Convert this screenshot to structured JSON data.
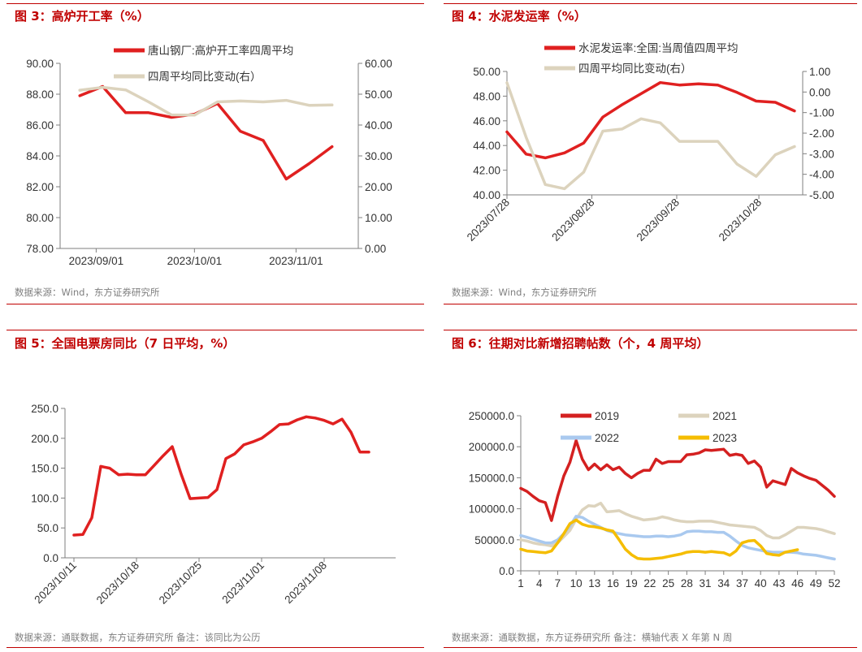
{
  "panels": [
    {
      "title": "图 3：高炉开工率（%）",
      "source": "数据来源：Wind，东方证券研究所",
      "chart_data": {
        "type": "line",
        "x": [
          "2023-08-27",
          "2023-09-03",
          "2023-09-10",
          "2023-09-17",
          "2023-09-24",
          "2023-10-01",
          "2023-10-08",
          "2023-10-15",
          "2023-10-22",
          "2023-10-29",
          "2023-11-05",
          "2023-11-12"
        ],
        "x_ticks": [
          "2023/09/01",
          "2023/10/01",
          "2023/11/01"
        ],
        "y_ticks": [
          "78.00",
          "80.00",
          "82.00",
          "84.00",
          "86.00",
          "88.00",
          "90.00"
        ],
        "y2_ticks": [
          "0.00",
          "10.00",
          "20.00",
          "30.00",
          "40.00",
          "50.00",
          "60.00"
        ],
        "ylim": [
          78,
          90
        ],
        "y2lim": [
          0,
          60
        ],
        "grid": false,
        "legend_position": "top",
        "series": [
          {
            "name": "唐山钢厂:高炉开工率四周平均",
            "axis": "left",
            "color": "#e02020",
            "values": [
              87.9,
              88.5,
              86.8,
              86.8,
              86.5,
              86.7,
              87.4,
              85.6,
              85.0,
              82.5,
              83.5,
              84.6
            ]
          },
          {
            "name": "四周平均同比变动(右）",
            "axis": "right",
            "color": "#dcd3bd",
            "values": [
              51.3,
              52.2,
              51.4,
              47.5,
              43.3,
              43.2,
              47.5,
              47.8,
              47.5,
              48.0,
              46.4,
              46.5
            ]
          }
        ]
      }
    },
    {
      "title": "图 4：水泥发运率（%）",
      "source": "数据来源：Wind，东方证券研究所",
      "chart_data": {
        "type": "line",
        "x": [
          "2023-07-28",
          "2023-08-04",
          "2023-08-11",
          "2023-08-18",
          "2023-08-25",
          "2023-09-01",
          "2023-09-08",
          "2023-09-15",
          "2023-09-22",
          "2023-09-29",
          "2023-10-06",
          "2023-10-13",
          "2023-10-20",
          "2023-10-27",
          "2023-11-03",
          "2023-11-10"
        ],
        "x_ticks": [
          "2023/07/28",
          "2023/08/28",
          "2023/09/28",
          "2023/10/28"
        ],
        "y_ticks": [
          "40.00",
          "42.00",
          "44.00",
          "46.00",
          "48.00",
          "50.00"
        ],
        "y2_ticks": [
          "-5.00",
          "-4.00",
          "-3.00",
          "-2.00",
          "-1.00",
          "0.00",
          "1.00"
        ],
        "ylim": [
          40,
          50
        ],
        "y2lim": [
          -5,
          1
        ],
        "grid": false,
        "legend_position": "top",
        "series": [
          {
            "name": "水泥发运率:全国:当周值四周平均",
            "axis": "left",
            "color": "#e02020",
            "values": [
              45.1,
              43.3,
              43.0,
              43.4,
              44.2,
              46.3,
              47.3,
              48.2,
              49.1,
              48.9,
              49.0,
              48.9,
              48.3,
              47.6,
              47.5,
              46.8
            ]
          },
          {
            "name": "四周平均同比变动(右）",
            "axis": "right",
            "color": "#dcd3bd",
            "values": [
              0.45,
              -2.2,
              -4.5,
              -4.7,
              -3.9,
              -1.9,
              -1.8,
              -1.3,
              -1.5,
              -2.4,
              -2.4,
              -2.4,
              -3.5,
              -4.1,
              -3.05,
              -2.65
            ]
          }
        ]
      }
    },
    {
      "title": "图 5：全国电票房同比（7 日平均，%）",
      "source": "数据来源：通联数据，东方证券研究所 备注：该同比为公历",
      "chart_data": {
        "type": "line",
        "x": [
          "2023-10-11",
          "2023-10-12",
          "2023-10-13",
          "2023-10-14",
          "2023-10-15",
          "2023-10-16",
          "2023-10-17",
          "2023-10-18",
          "2023-10-19",
          "2023-10-20",
          "2023-10-21",
          "2023-10-22",
          "2023-10-23",
          "2023-10-24",
          "2023-10-25",
          "2023-10-26",
          "2023-10-27",
          "2023-10-28",
          "2023-10-29",
          "2023-10-30",
          "2023-10-31",
          "2023-11-01",
          "2023-11-02",
          "2023-11-03",
          "2023-11-04",
          "2023-11-05",
          "2023-11-06",
          "2023-11-07",
          "2023-11-08",
          "2023-11-09",
          "2023-11-10",
          "2023-11-11",
          "2023-11-12",
          "2023-11-13"
        ],
        "x_ticks": [
          "2023/10/11",
          "2023/10/18",
          "2023/10/25",
          "2023/11/01",
          "2023/11/08"
        ],
        "y_ticks": [
          "0.0",
          "50.0",
          "100.0",
          "150.0",
          "200.0",
          "250.0"
        ],
        "ylim": [
          0,
          250
        ],
        "grid": false,
        "series": [
          {
            "name": "全国电票房同比",
            "color": "#e02020",
            "values": [
              38,
              39,
              67,
              153,
              150,
              139,
              140,
              139,
              139,
              155,
              171,
              186,
              140,
              99,
              100,
              101,
              114,
              166,
              174,
              189,
              194,
              200,
              211,
              223,
              224,
              231,
              236,
              234,
              230,
              224,
              232,
              210,
              177,
              177
            ]
          }
        ]
      }
    },
    {
      "title": "图 6：往期对比新增招聘帖数（个，4 周平均）",
      "source": "数据来源：通联数据，东方证券研究所 备注：横轴代表 X 年第 N 周",
      "chart_data": {
        "type": "line",
        "x_ticks": [
          "1",
          "4",
          "7",
          "10",
          "13",
          "16",
          "19",
          "22",
          "25",
          "28",
          "31",
          "34",
          "37",
          "40",
          "43",
          "46",
          "49",
          "52"
        ],
        "y_ticks": [
          "0.0",
          "50000.0",
          "100000.0",
          "150000.0",
          "200000.0",
          "250000.0"
        ],
        "ylim": [
          0,
          250000
        ],
        "grid": false,
        "legend_position": "top",
        "series": [
          {
            "name": "2019",
            "color": "#d42020",
            "values": [
              133000,
              128000,
              120000,
              113000,
              110000,
              81000,
              120000,
              153000,
              175000,
              210000,
              180000,
              163000,
              172000,
              163000,
              171000,
              163000,
              167000,
              157000,
              150000,
              157000,
              162000,
              162000,
              180000,
              173000,
              176000,
              176000,
              176000,
              187000,
              188000,
              190000,
              195000,
              194000,
              195000,
              196000,
              186000,
              188000,
              186000,
              173000,
              177000,
              167000,
              135000,
              145000,
              142000,
              139000,
              165000,
              158000,
              153000,
              149000,
              146000,
              138000,
              130000,
              120000
            ]
          },
          {
            "name": "2021",
            "color": "#dcd3bd",
            "values": [
              50000,
              48000,
              45000,
              43000,
              42000,
              40000,
              45000,
              55000,
              65000,
              83000,
              98000,
              105000,
              104000,
              109000,
              95000,
              96000,
              97000,
              92000,
              88000,
              85000,
              82000,
              83000,
              84000,
              87000,
              85000,
              82000,
              80000,
              79000,
              79000,
              80000,
              80000,
              80000,
              78000,
              76000,
              74000,
              73000,
              72000,
              71000,
              70000,
              65000,
              57000,
              53000,
              53000,
              58000,
              64000,
              70000,
              70000,
              69000,
              68000,
              66000,
              63000,
              60000
            ]
          },
          {
            "name": "2022",
            "color": "#a9c9ef",
            "values": [
              57000,
              54000,
              51000,
              48000,
              45000,
              45000,
              50000,
              60000,
              72000,
              88000,
              86000,
              80000,
              75000,
              70000,
              65000,
              62000,
              60000,
              58000,
              57000,
              56000,
              55000,
              55000,
              56000,
              56000,
              55000,
              56000,
              58000,
              63000,
              64000,
              64000,
              63000,
              63000,
              62000,
              62000,
              56000,
              48000,
              41000,
              37000,
              35000,
              33000,
              31000,
              30000,
              30000,
              30000,
              30000,
              29000,
              27000,
              26000,
              25000,
              23000,
              21000,
              19000
            ]
          },
          {
            "name": "2023",
            "color": "#f5bd00",
            "values": [
              35000,
              32000,
              31000,
              30000,
              29000,
              32000,
              45000,
              60000,
              76000,
              82000,
              75000,
              72000,
              71000,
              69000,
              66000,
              64000,
              50000,
              35000,
              26000,
              20000,
              19000,
              19000,
              20000,
              21000,
              23000,
              25000,
              27000,
              30000,
              31000,
              31000,
              30000,
              31000,
              30000,
              29000,
              25000,
              32000,
              45000,
              48000,
              49000,
              40000,
              28000,
              26000,
              25000,
              30000,
              32000,
              34000
            ]
          }
        ]
      }
    }
  ]
}
